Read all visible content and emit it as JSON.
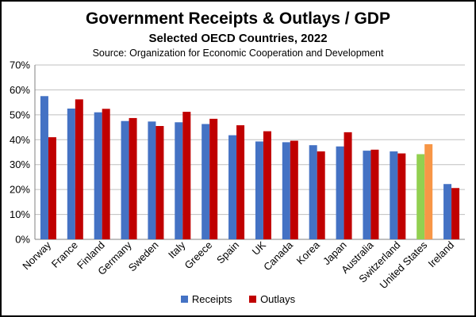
{
  "chart_data": {
    "type": "bar",
    "title": "Government Receipts & Outlays / GDP",
    "subtitle": "Selected OECD Countries, 2022",
    "source": "Source:  Organization for Economic Cooperation and Development",
    "categories": [
      "Norway",
      "France",
      "Finland",
      "Germany",
      "Sweden",
      "Italy",
      "Greece",
      "Spain",
      "UK",
      "Canada",
      "Korea",
      "Japan",
      "Australia",
      "Switzerland",
      "United States",
      "Ireland"
    ],
    "series": [
      {
        "name": "Receipts",
        "color": "#4472C4",
        "values": [
          57.5,
          52.5,
          51.0,
          47.5,
          47.3,
          47.0,
          46.3,
          41.8,
          39.3,
          39.0,
          37.8,
          37.3,
          35.6,
          35.3,
          34.2,
          22.2
        ]
      },
      {
        "name": "Outlays",
        "color": "#C00000",
        "values": [
          41.0,
          56.2,
          52.4,
          48.7,
          45.5,
          51.2,
          48.4,
          45.8,
          43.4,
          39.6,
          35.3,
          43.0,
          36.0,
          34.5,
          38.2,
          20.6
        ]
      }
    ],
    "highlight": {
      "category": "United States",
      "receipts_color": "#92D050",
      "outlays_color": "#F79646"
    },
    "ylim": [
      0,
      70
    ],
    "yticks": [
      "0%",
      "10%",
      "20%",
      "30%",
      "40%",
      "50%",
      "60%",
      "70%"
    ],
    "ytick_values": [
      0,
      10,
      20,
      30,
      40,
      50,
      60,
      70
    ],
    "grid": true,
    "legend_position": "bottom"
  }
}
